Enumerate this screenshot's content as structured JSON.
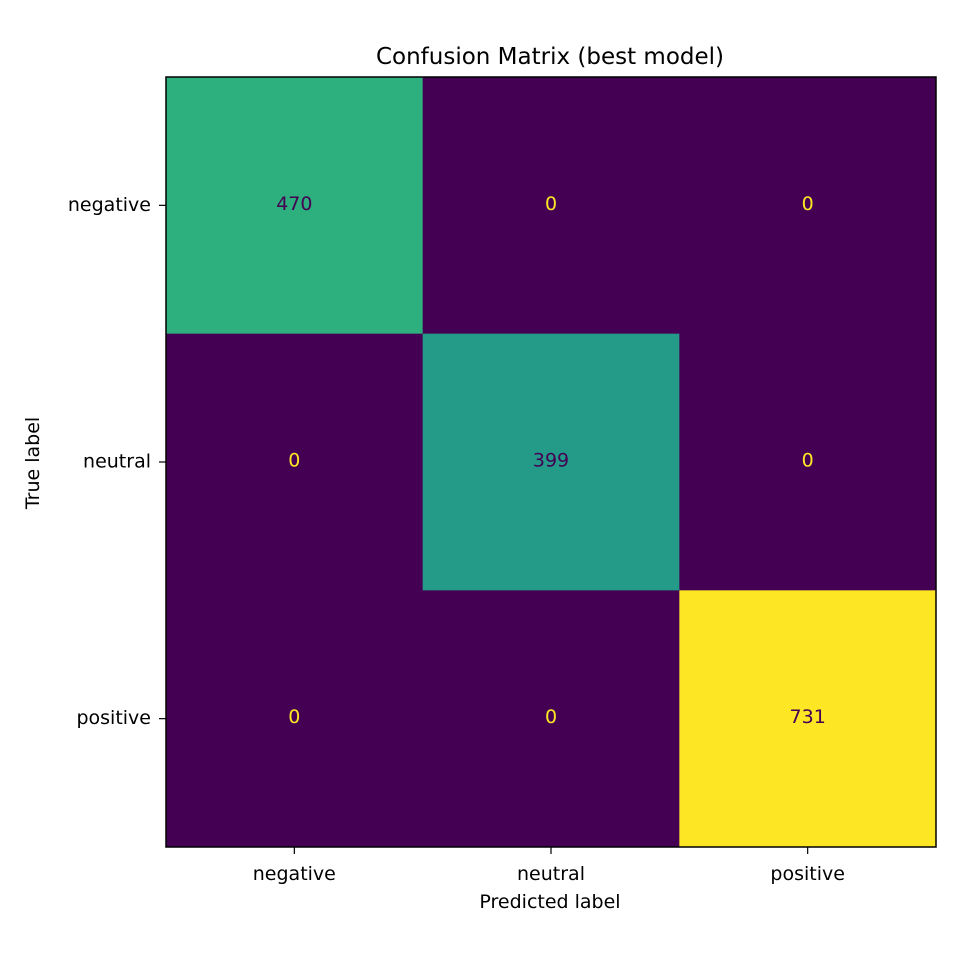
{
  "chart_data": {
    "type": "heatmap",
    "title": "Confusion Matrix (best model)",
    "xlabel": "Predicted label",
    "ylabel": "True label",
    "x_categories": [
      "negative",
      "neutral",
      "positive"
    ],
    "y_categories": [
      "negative",
      "neutral",
      "positive"
    ],
    "values": [
      [
        470,
        0,
        0
      ],
      [
        0,
        399,
        0
      ],
      [
        0,
        0,
        731
      ]
    ],
    "colormap": "viridis",
    "value_range": [
      0,
      731
    ],
    "colorbar": false,
    "grid": false,
    "text_color_dark": "#440154",
    "text_color_light": "#fde725"
  }
}
